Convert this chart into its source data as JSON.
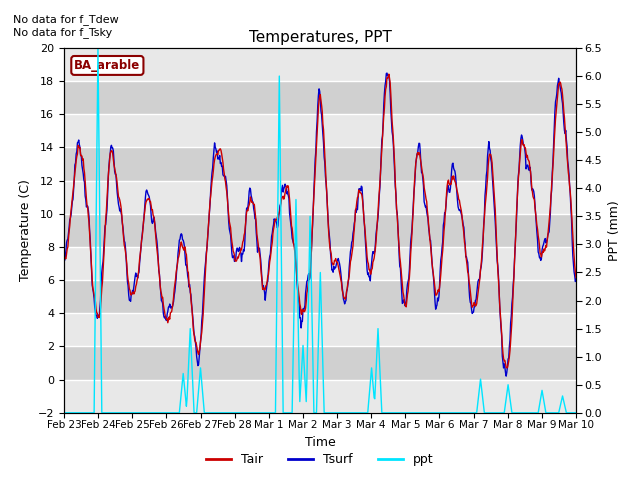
{
  "title": "Temperatures, PPT",
  "xlabel": "Time",
  "ylabel_left": "Temperature (C)",
  "ylabel_right": "PPT (mm)",
  "ylim_left": [
    -2,
    20
  ],
  "ylim_right": [
    0.0,
    6.5
  ],
  "yticks_left": [
    -2,
    0,
    2,
    4,
    6,
    8,
    10,
    12,
    14,
    16,
    18,
    20
  ],
  "yticks_right": [
    0.0,
    0.5,
    1.0,
    1.5,
    2.0,
    2.5,
    3.0,
    3.5,
    4.0,
    4.5,
    5.0,
    5.5,
    6.0,
    6.5
  ],
  "annotation_text": "No data for f_Tdew\nNo data for f_Tsky",
  "legend_label": "BA_arable",
  "bg_color_light": "#e8e8e8",
  "bg_color_dark": "#d0d0d0",
  "tair_color": "#cc0000",
  "tsurf_color": "#0000cc",
  "ppt_color": "#00e5ff",
  "x_labels": [
    "Feb 23",
    "Feb 24",
    "Feb 25",
    "Feb 26",
    "Feb 27",
    "Feb 28",
    "Mar 1",
    "Mar 2",
    "Mar 3",
    "Mar 4",
    "Mar 5",
    "Mar 6",
    "Mar 7",
    "Mar 8",
    "Mar 9",
    "Mar 10"
  ],
  "n_points": 800
}
